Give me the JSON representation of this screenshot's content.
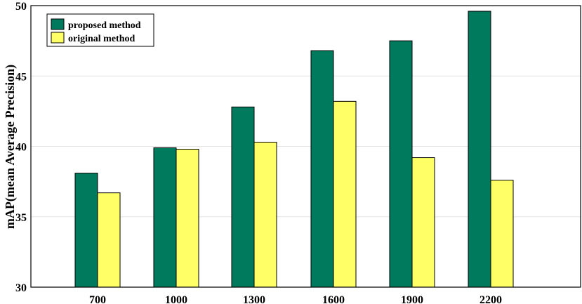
{
  "chart_data": {
    "type": "bar",
    "categories": [
      "700",
      "1000",
      "1300",
      "1600",
      "1900",
      "2200"
    ],
    "series": [
      {
        "name": "proposed method",
        "values": [
          38.1,
          39.9,
          42.8,
          46.8,
          47.5,
          49.6
        ],
        "color": "#007a5c"
      },
      {
        "name": "original method",
        "values": [
          36.7,
          39.8,
          40.3,
          43.2,
          39.2,
          37.6
        ],
        "color": "#ffff66"
      }
    ],
    "ylabel": "mAP(mean Average Precision)",
    "ylim": [
      30,
      50
    ],
    "yticks": [
      "30",
      "35",
      "40",
      "45",
      "50"
    ],
    "grid": true,
    "legend_position": "top-left"
  }
}
